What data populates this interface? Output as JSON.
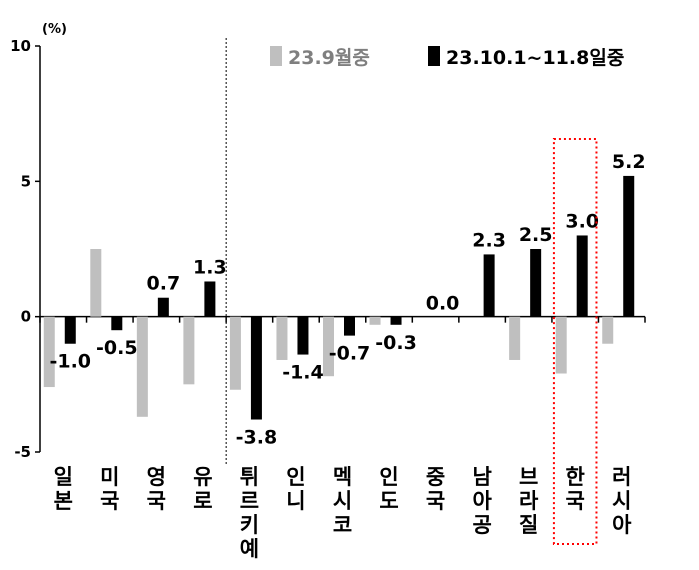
{
  "chart_data": {
    "type": "bar",
    "unit_label": "(%)",
    "ylim": [
      -5,
      10
    ],
    "yticks": [
      "10",
      "5",
      "0",
      "-5"
    ],
    "categories": [
      "일본",
      "미국",
      "영국",
      "유로",
      "튀르키예",
      "인니",
      "멕시코",
      "인도",
      "중국",
      "남아공",
      "브라질",
      "한국",
      "러시아"
    ],
    "series": [
      {
        "name": "23.9월중",
        "color": "#bfbfbf",
        "values": [
          -2.6,
          2.5,
          -3.7,
          -2.5,
          -2.7,
          -1.6,
          -2.2,
          -0.3,
          0.0,
          0.0,
          -1.6,
          -2.1,
          -1.0
        ]
      },
      {
        "name": "23.10.1~11.8일중",
        "color": "#000000",
        "values": [
          -1.0,
          -0.5,
          0.7,
          1.3,
          -3.8,
          -1.4,
          -0.7,
          -0.3,
          0.0,
          2.3,
          2.5,
          3.0,
          5.2
        ],
        "labels": [
          "-1.0",
          "-0.5",
          "0.7",
          "1.3",
          "-3.8",
          "-1.4",
          "-0.7",
          "-0.3",
          "0.0",
          "2.3",
          "2.5",
          "3.0",
          "5.2"
        ]
      }
    ],
    "divider_after": "유로",
    "highlight": "한국"
  }
}
